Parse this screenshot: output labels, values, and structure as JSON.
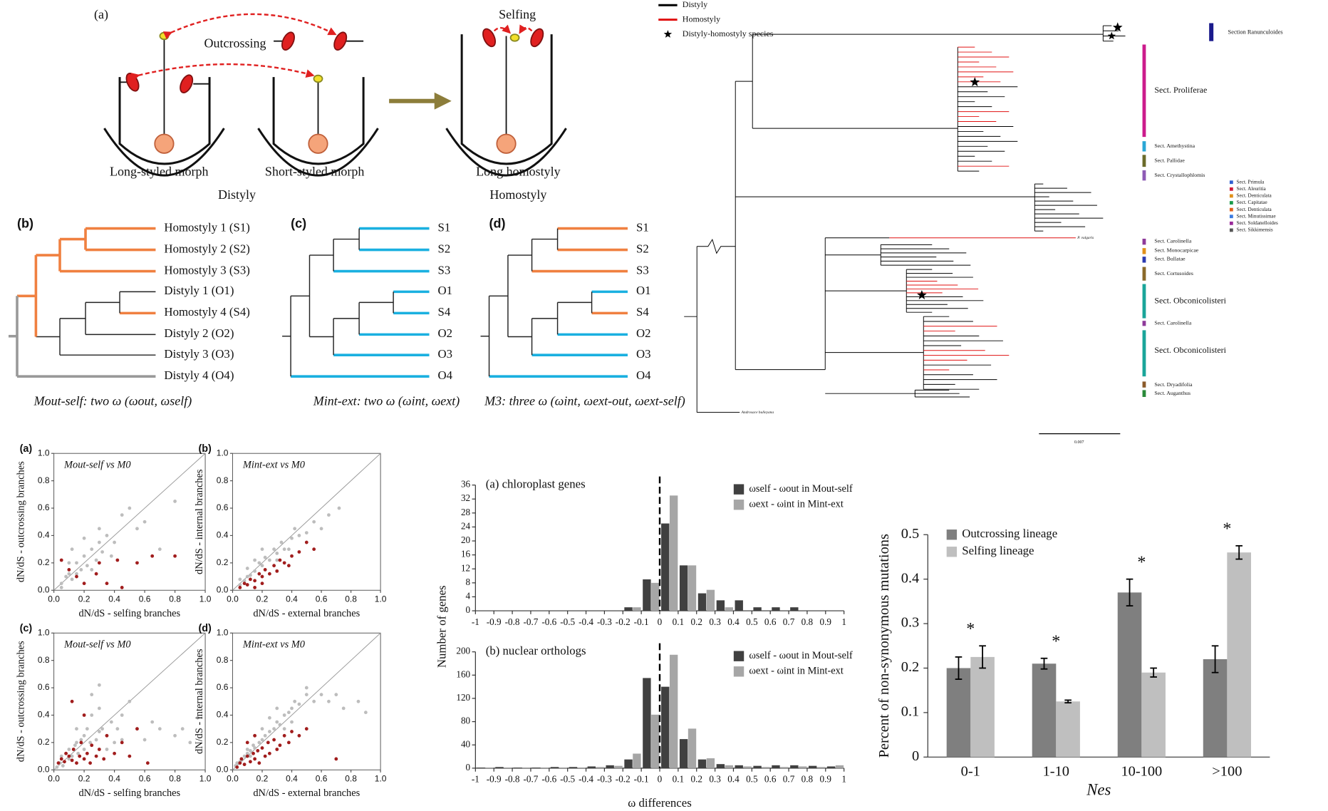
{
  "diagram": {
    "label": "(a)",
    "outcrossing": "Outcrossing",
    "selfing": "Selfing",
    "morphs": [
      "Long-styled morph",
      "Short-styled morph",
      "Long homostyly"
    ],
    "groups": [
      "Distyly",
      "Homostyly"
    ]
  },
  "trees": [
    {
      "label": "(b)",
      "leaves": [
        "Homostyly 1 (S1)",
        "Homostyly 2 (S2)",
        "Homostyly 3 (S3)",
        "Distyly 1 (O1)",
        "Homostyly 4 (S4)",
        "Distyly 2 (O2)",
        "Distyly 3 (O3)",
        "Distyly 4 (O4)"
      ],
      "caption": "Mout-self: two ω (ωout, ωself)"
    },
    {
      "label": "(c)",
      "leaves": [
        "S1",
        "S2",
        "S3",
        "O1",
        "S4",
        "O2",
        "O3",
        "O4"
      ],
      "caption": "Mint-ext: two ω (ωint, ωext)"
    },
    {
      "label": "(d)",
      "leaves": [
        "S1",
        "S2",
        "S3",
        "O1",
        "S4",
        "O2",
        "O3",
        "O4"
      ],
      "caption": "M3: three ω (ωint, ωext-out, ωext-self)"
    }
  ],
  "phylogeny": {
    "legend": [
      {
        "name": "Distyly",
        "color": "#000000"
      },
      {
        "name": "Homostyly",
        "color": "#e01010"
      },
      {
        "name": "Distyly-homostyly species"
      }
    ],
    "sections": [
      {
        "name": "Section Ranunculoides",
        "color": "#1a1a8c"
      },
      {
        "name": "Sect. Proliferae",
        "color": "#cc1b8c"
      },
      {
        "name": "Sect. Amethystina",
        "color": "#2aa7d5"
      },
      {
        "name": "Sect. Pallidae",
        "color": "#6b6b2a"
      },
      {
        "name": "Sect. Crystallophlomis",
        "color": "#8e5bb5"
      },
      {
        "name": "Sect. Primula",
        "color": "#2f5fd0"
      },
      {
        "name": "Sect. Aleuritia",
        "color": "#d01a3a"
      },
      {
        "name": "Sect. Denticulata",
        "color": "#e0901a"
      },
      {
        "name": "Sect. Capitatae",
        "color": "#1a9a4a"
      },
      {
        "name": "Sect. Denticulata",
        "color": "#e0601a"
      },
      {
        "name": "Sect. Minutissimae",
        "color": "#3a7ae0"
      },
      {
        "name": "Sect. Soldanelloides",
        "color": "#9a2a9a"
      },
      {
        "name": "Sect. Sikkimensis",
        "color": "#555555"
      },
      {
        "name": "Sect. Carolinella",
        "color": "#8e3a9a"
      },
      {
        "name": "Sect. Monocarpicae",
        "color": "#e0901a"
      },
      {
        "name": "Sect. Bullatae",
        "color": "#2a3ab0"
      },
      {
        "name": "Sect. Cortusoides",
        "color": "#8b6a2a"
      },
      {
        "name": "Sect. Obconicolisteri",
        "color": "#1aa59a"
      },
      {
        "name": "Sect. Carolinella",
        "color": "#8e3a9a"
      },
      {
        "name": "Sect. Obconicolisteri",
        "color": "#1aa59a"
      },
      {
        "name": "Sect. Dryadifolia",
        "color": "#8b5a2a"
      },
      {
        "name": "Sect. Auganthus",
        "color": "#2a8a3a"
      }
    ],
    "species": [
      "P. vulgaris"
    ],
    "outgroup": "Androsace bulleyana",
    "scale": "0.007"
  },
  "chart_data": [
    {
      "type": "scatter",
      "label": "(a)",
      "title": "Mout-self vs M0",
      "xlabel": "dN/dS - selfing branches",
      "ylabel": "dN/dS - outcrossing branches",
      "xlim": [
        0,
        1
      ],
      "ylim": [
        0,
        1
      ],
      "diagonal": true,
      "xticks": [
        {
          "value": 0,
          "label": "0.0"
        },
        0.2,
        0.4,
        0.6,
        0.8,
        {
          "value": 1,
          "label": "1.0"
        }
      ],
      "yticks": [
        {
          "value": 0,
          "label": "0.0"
        },
        0.2,
        0.4,
        0.6,
        0.8,
        {
          "value": 1,
          "label": "1.0"
        }
      ],
      "series": [
        {
          "color": "#bdbdbd",
          "x": [
            0.05,
            0.08,
            0.1,
            0.12,
            0.15,
            0.18,
            0.2,
            0.22,
            0.25,
            0.28,
            0.3,
            0.32,
            0.35,
            0.12,
            0.2,
            0.3,
            0.45,
            0.5,
            0.55,
            0.4,
            0.6,
            0.8,
            0.7,
            0.15,
            0.1,
            0.25,
            0.05,
            0.38
          ],
          "values": [
            0.05,
            0.1,
            0.12,
            0.08,
            0.2,
            0.15,
            0.25,
            0.18,
            0.3,
            0.22,
            0.35,
            0.28,
            0.4,
            0.3,
            0.38,
            0.45,
            0.55,
            0.6,
            0.45,
            0.35,
            0.5,
            0.65,
            0.3,
            0.12,
            0.2,
            0.15,
            0.02,
            0.25
          ]
        },
        {
          "color": "#a11d1d",
          "x": [
            0.05,
            0.1,
            0.15,
            0.2,
            0.28,
            0.35,
            0.42,
            0.45,
            0.55,
            0.65,
            0.8,
            0.3
          ],
          "values": [
            0.22,
            0.15,
            0.1,
            0.05,
            0.12,
            0.05,
            0.22,
            0.02,
            0.2,
            0.25,
            0.25,
            0.2
          ]
        }
      ]
    },
    {
      "type": "scatter",
      "label": "(b)",
      "title": "Mint-ext vs M0",
      "xlabel": "dN/dS - external branches",
      "ylabel": "dN/dS - internal branches",
      "xlim": [
        0,
        1
      ],
      "ylim": [
        0,
        1
      ],
      "diagonal": true,
      "xticks": [
        {
          "value": 0,
          "label": "0.0"
        },
        0.2,
        0.4,
        0.6,
        0.8,
        {
          "value": 1,
          "label": "1.0"
        }
      ],
      "yticks": [
        {
          "value": 0,
          "label": "0.0"
        },
        0.2,
        0.4,
        0.6,
        0.8,
        {
          "value": 1,
          "label": "1.0"
        }
      ],
      "series": [
        {
          "color": "#bdbdbd",
          "x": [
            0.05,
            0.08,
            0.1,
            0.12,
            0.15,
            0.18,
            0.2,
            0.22,
            0.25,
            0.28,
            0.3,
            0.33,
            0.35,
            0.4,
            0.42,
            0.45,
            0.5,
            0.55,
            0.6,
            0.72,
            0.15,
            0.2,
            0.1,
            0.05,
            0.3,
            0.38,
            0.65
          ],
          "values": [
            0.04,
            0.07,
            0.1,
            0.11,
            0.14,
            0.2,
            0.18,
            0.24,
            0.22,
            0.3,
            0.27,
            0.35,
            0.3,
            0.38,
            0.45,
            0.4,
            0.42,
            0.5,
            0.45,
            0.6,
            0.22,
            0.3,
            0.16,
            0.08,
            0.22,
            0.3,
            0.55
          ]
        },
        {
          "color": "#a11d1d",
          "x": [
            0.05,
            0.08,
            0.1,
            0.12,
            0.15,
            0.18,
            0.2,
            0.22,
            0.25,
            0.28,
            0.3,
            0.32,
            0.35,
            0.4,
            0.38,
            0.45,
            0.5,
            0.55,
            0.2,
            0.15
          ],
          "values": [
            0.02,
            0.05,
            0.04,
            0.08,
            0.07,
            0.12,
            0.1,
            0.15,
            0.12,
            0.18,
            0.14,
            0.22,
            0.2,
            0.25,
            0.18,
            0.28,
            0.35,
            0.3,
            0.05,
            0.02
          ]
        }
      ]
    },
    {
      "type": "scatter",
      "label": "(c)",
      "title": "Mout-self vs M0",
      "xlabel": "dN/dS - selfing branches",
      "ylabel": "dN/dS - outcrossing branches",
      "xlim": [
        0,
        1
      ],
      "ylim": [
        0,
        1
      ],
      "diagonal": true,
      "xticks": [
        {
          "value": 0,
          "label": "0.0"
        },
        0.2,
        0.4,
        0.6,
        0.8,
        {
          "value": 1,
          "label": "1.0"
        }
      ],
      "yticks": [
        {
          "value": 0,
          "label": "0.0"
        },
        0.2,
        0.4,
        0.6,
        0.8,
        {
          "value": 1,
          "label": "1.0"
        }
      ],
      "series": [
        {
          "color": "#bdbdbd",
          "x": [
            0.02,
            0.04,
            0.05,
            0.06,
            0.08,
            0.1,
            0.1,
            0.12,
            0.14,
            0.15,
            0.16,
            0.18,
            0.2,
            0.2,
            0.22,
            0.24,
            0.25,
            0.28,
            0.3,
            0.3,
            0.32,
            0.35,
            0.38,
            0.4,
            0.42,
            0.45,
            0.5,
            0.55,
            0.6,
            0.65,
            0.7,
            0.8,
            0.85,
            0.9,
            0.95,
            0.25,
            0.3,
            0.15,
            0.35,
            0.45
          ],
          "values": [
            0.02,
            0.05,
            0.1,
            0.03,
            0.12,
            0.08,
            0.15,
            0.1,
            0.18,
            0.2,
            0.12,
            0.22,
            0.15,
            0.25,
            0.3,
            0.2,
            0.4,
            0.22,
            0.28,
            0.45,
            0.3,
            0.25,
            0.35,
            0.2,
            0.3,
            0.22,
            0.5,
            0.3,
            0.22,
            0.35,
            0.3,
            0.25,
            0.3,
            0.2,
            0.38,
            0.55,
            0.62,
            0.3,
            0.15,
            0.4
          ]
        },
        {
          "color": "#a11d1d",
          "x": [
            0.03,
            0.05,
            0.07,
            0.08,
            0.1,
            0.12,
            0.13,
            0.15,
            0.17,
            0.18,
            0.2,
            0.22,
            0.24,
            0.25,
            0.28,
            0.3,
            0.33,
            0.35,
            0.4,
            0.45,
            0.5,
            0.55,
            0.62,
            0.12,
            0.2
          ],
          "values": [
            0.05,
            0.08,
            0.06,
            0.12,
            0.1,
            0.07,
            0.15,
            0.05,
            0.1,
            0.2,
            0.08,
            0.12,
            0.05,
            0.18,
            0.1,
            0.15,
            0.08,
            0.25,
            0.12,
            0.2,
            0.1,
            0.3,
            0.05,
            0.5,
            0.4
          ]
        }
      ]
    },
    {
      "type": "scatter",
      "label": "(d)",
      "title": "Mint-ext vs M0",
      "xlabel": "dN/dS - external branches",
      "ylabel": "dN/dS - internal branches",
      "xlim": [
        0,
        1
      ],
      "ylim": [
        0,
        1
      ],
      "diagonal": true,
      "xticks": [
        {
          "value": 0,
          "label": "0.0"
        },
        0.2,
        0.4,
        0.6,
        0.8,
        {
          "value": 1,
          "label": "1.0"
        }
      ],
      "yticks": [
        {
          "value": 0,
          "label": "0.0"
        },
        0.2,
        0.4,
        0.6,
        0.8,
        {
          "value": 1,
          "label": "1.0"
        }
      ],
      "series": [
        {
          "color": "#bdbdbd",
          "x": [
            0.02,
            0.03,
            0.05,
            0.06,
            0.08,
            0.1,
            0.12,
            0.14,
            0.15,
            0.18,
            0.2,
            0.22,
            0.25,
            0.28,
            0.3,
            0.32,
            0.35,
            0.38,
            0.4,
            0.42,
            0.45,
            0.5,
            0.55,
            0.6,
            0.65,
            0.7,
            0.75,
            0.85,
            0.9,
            0.1,
            0.15,
            0.2,
            0.25,
            0.3,
            0.12,
            0.35,
            0.4,
            0.5
          ],
          "values": [
            0.03,
            0.05,
            0.06,
            0.08,
            0.1,
            0.12,
            0.14,
            0.18,
            0.16,
            0.2,
            0.22,
            0.25,
            0.28,
            0.3,
            0.35,
            0.33,
            0.4,
            0.42,
            0.45,
            0.5,
            0.48,
            0.55,
            0.5,
            0.55,
            0.5,
            0.55,
            0.45,
            0.5,
            0.42,
            0.15,
            0.25,
            0.3,
            0.38,
            0.45,
            0.1,
            0.3,
            0.35,
            0.6
          ]
        },
        {
          "color": "#a11d1d",
          "x": [
            0.03,
            0.05,
            0.06,
            0.08,
            0.1,
            0.12,
            0.14,
            0.15,
            0.17,
            0.18,
            0.2,
            0.22,
            0.24,
            0.25,
            0.28,
            0.3,
            0.32,
            0.35,
            0.38,
            0.4,
            0.45,
            0.5,
            0.7,
            0.1,
            0.15
          ],
          "values": [
            0.02,
            0.05,
            0.08,
            0.04,
            0.1,
            0.06,
            0.12,
            0.08,
            0.14,
            0.05,
            0.16,
            0.1,
            0.2,
            0.12,
            0.22,
            0.15,
            0.18,
            0.25,
            0.2,
            0.28,
            0.25,
            0.3,
            0.08,
            0.2,
            0.25
          ]
        }
      ]
    },
    {
      "type": "histogram",
      "title": "(a) chloroplast genes",
      "ylabel": "Number of genes",
      "bins": [
        -1,
        -0.9,
        -0.8,
        -0.7,
        -0.6,
        -0.5,
        -0.4,
        -0.3,
        -0.2,
        -0.1,
        0,
        0.1,
        0.2,
        0.3,
        0.4,
        0.5,
        0.6,
        0.7,
        0.8,
        0.9,
        1
      ],
      "xlim": [
        -1,
        1
      ],
      "xticks": [
        -1,
        -0.9,
        -0.8,
        -0.7,
        -0.6,
        -0.5,
        -0.4,
        -0.3,
        -0.2,
        -0.1,
        0,
        0.1,
        0.2,
        0.3,
        0.4,
        0.5,
        0.6,
        0.7,
        0.8,
        0.9,
        1
      ],
      "ylim": [
        0,
        36
      ],
      "yticks": [
        0,
        4,
        8,
        12,
        16,
        20,
        24,
        28,
        32,
        36
      ],
      "vline": 0,
      "series": [
        {
          "name": "ωself - ωout in Mout-self",
          "color": "#404040",
          "values": [
            0,
            0,
            0,
            0,
            0,
            0,
            0,
            0,
            1,
            9,
            25,
            13,
            5,
            3,
            3,
            1,
            1,
            1,
            0,
            0
          ]
        },
        {
          "name": "ωext - ωint in Mint-ext",
          "color": "#a6a6a6",
          "values": [
            0,
            0,
            0,
            0,
            0,
            0,
            0,
            0,
            1,
            8,
            33,
            13,
            6,
            1,
            0,
            0,
            0,
            0,
            0,
            0
          ]
        }
      ]
    },
    {
      "type": "histogram",
      "title": "(b) nuclear orthologs",
      "xlabel": "ω differences",
      "bins": [
        -1,
        -0.9,
        -0.8,
        -0.7,
        -0.6,
        -0.5,
        -0.4,
        -0.3,
        -0.2,
        -0.1,
        0,
        0.1,
        0.2,
        0.3,
        0.4,
        0.5,
        0.6,
        0.7,
        0.8,
        0.9,
        1
      ],
      "xlim": [
        -1,
        1
      ],
      "xticks": [
        -1,
        -0.9,
        -0.8,
        -0.7,
        -0.6,
        -0.5,
        -0.4,
        -0.3,
        -0.2,
        -0.1,
        0,
        0.1,
        0.2,
        0.3,
        0.4,
        0.5,
        0.6,
        0.7,
        0.8,
        0.9,
        1
      ],
      "ylim": [
        0,
        200
      ],
      "yticks": [
        0,
        40,
        80,
        120,
        160,
        200
      ],
      "vline": 0,
      "series": [
        {
          "name": "ωself - ωout in Mout-self",
          "color": "#404040",
          "values": [
            1,
            2,
            1,
            1,
            2,
            2,
            3,
            5,
            15,
            155,
            140,
            50,
            15,
            7,
            5,
            4,
            5,
            5,
            4,
            3
          ]
        },
        {
          "name": "ωext - ωint in Mint-ext",
          "color": "#a6a6a6",
          "values": [
            1,
            1,
            1,
            1,
            1,
            1,
            2,
            4,
            25,
            92,
            195,
            68,
            17,
            5,
            3,
            2,
            2,
            3,
            2,
            5
          ]
        }
      ]
    },
    {
      "type": "bar",
      "ylabel": "Percent of non-synonymous mutations",
      "xlabel": "Nes",
      "categories": [
        "0-1",
        "1-10",
        "10-100",
        ">100"
      ],
      "ylim": [
        0,
        0.5
      ],
      "yticks": [
        0,
        0.1,
        0.2,
        0.3,
        0.4,
        0.5
      ],
      "legend": "upper left",
      "series": [
        {
          "name": "Outcrossing lineage",
          "color": "#7f7f7f",
          "values": [
            0.2,
            0.21,
            0.37,
            0.22
          ],
          "errors": [
            0.025,
            0.012,
            0.03,
            0.03
          ]
        },
        {
          "name": "Selfing lineage",
          "color": "#bfbfbf",
          "values": [
            0.225,
            0.125,
            0.19,
            0.46
          ],
          "errors": [
            0.025,
            0.003,
            0.01,
            0.015
          ]
        }
      ],
      "annotations": [
        "*",
        "*",
        "*",
        "*"
      ]
    }
  ]
}
